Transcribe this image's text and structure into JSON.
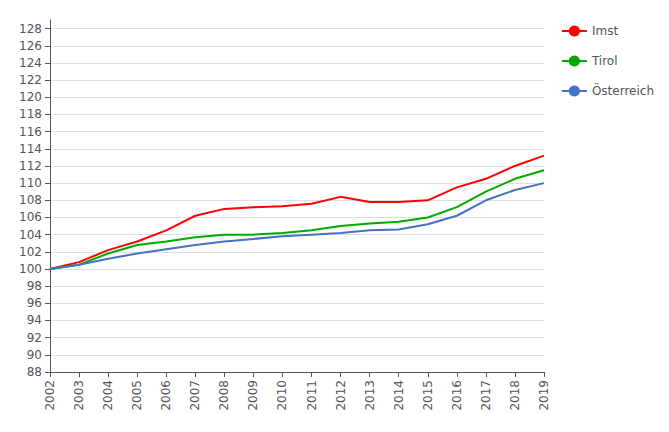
{
  "chart_data": {
    "type": "line",
    "x": [
      2002,
      2003,
      2004,
      2005,
      2006,
      2007,
      2008,
      2009,
      2010,
      2011,
      2012,
      2013,
      2014,
      2015,
      2016,
      2017,
      2018,
      2019
    ],
    "series": [
      {
        "name": "Imst",
        "color": "#ff0000",
        "values": [
          100.0,
          100.8,
          102.2,
          103.2,
          104.5,
          106.2,
          107.0,
          107.2,
          107.3,
          107.6,
          108.4,
          107.8,
          107.8,
          108.0,
          109.5,
          110.5,
          112.0,
          113.2
        ]
      },
      {
        "name": "Tirol",
        "color": "#00aa00",
        "values": [
          100.0,
          100.5,
          101.8,
          102.8,
          103.2,
          103.7,
          104.0,
          104.0,
          104.2,
          104.5,
          105.0,
          105.3,
          105.5,
          106.0,
          107.2,
          109.0,
          110.5,
          111.5
        ]
      },
      {
        "name": "Österreich",
        "color": "#4472c4",
        "values": [
          100.0,
          100.5,
          101.2,
          101.8,
          102.3,
          102.8,
          103.2,
          103.5,
          103.8,
          104.0,
          104.2,
          104.5,
          104.6,
          105.2,
          106.2,
          108.0,
          109.2,
          110.0
        ]
      }
    ],
    "xlim": [
      2002,
      2019
    ],
    "xticks": [
      2002,
      2003,
      2004,
      2005,
      2006,
      2007,
      2008,
      2009,
      2010,
      2011,
      2012,
      2013,
      2014,
      2015,
      2016,
      2017,
      2018,
      2019
    ],
    "ylim": [
      88,
      129
    ],
    "yticks": [
      88,
      90,
      92,
      94,
      96,
      98,
      100,
      102,
      104,
      106,
      108,
      110,
      112,
      114,
      116,
      118,
      120,
      122,
      124,
      126,
      128
    ],
    "grid": true,
    "legend": "right"
  }
}
